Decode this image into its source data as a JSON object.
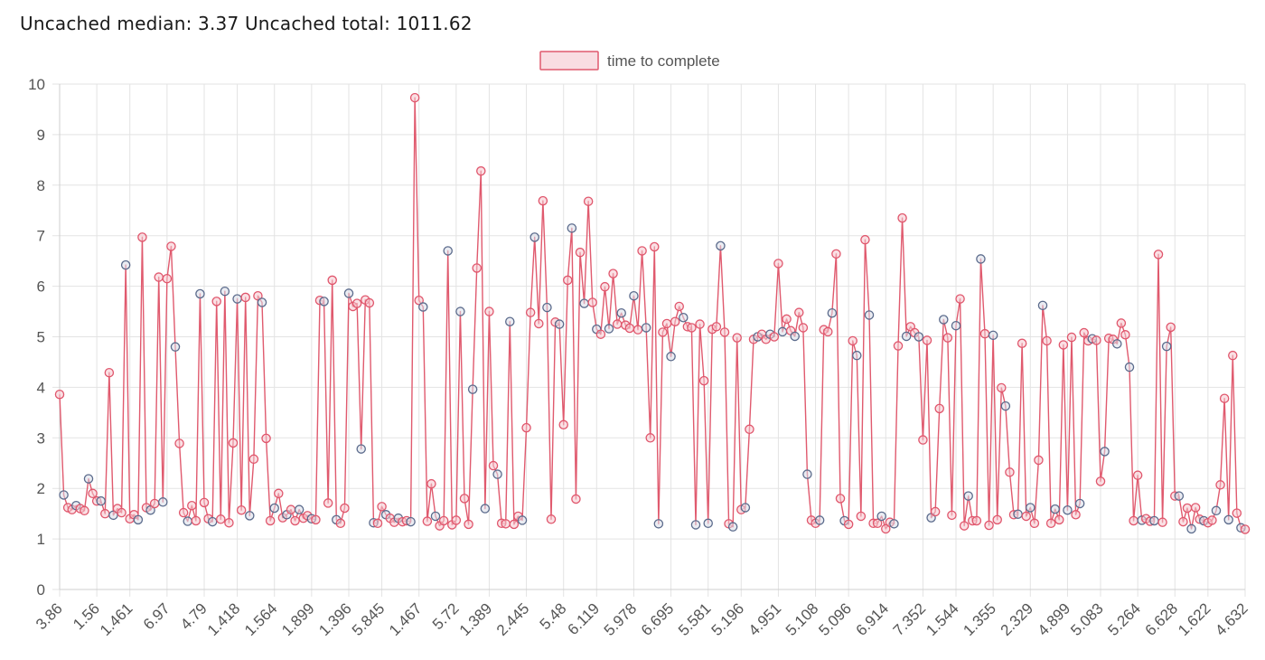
{
  "header": {
    "text": "Uncached median: 3.37 Uncached total: 1011.62"
  },
  "colors": {
    "line": "#e05a6e",
    "point_fill_a": "#f5c6ce",
    "point_stroke_a": "#e0566c",
    "point_fill_b": "#d8dde8",
    "point_stroke_b": "#5b6b8c",
    "grid": "#e3e3e3"
  },
  "chart_data": {
    "type": "line",
    "title": "",
    "xlabel": "",
    "ylabel": "",
    "ylim": [
      0,
      10
    ],
    "yticks": [
      0,
      1,
      2,
      3,
      4,
      5,
      6,
      7,
      8,
      9,
      10
    ],
    "legend": {
      "position": "top-center"
    },
    "grid": true,
    "series": [
      {
        "name": "time to complete",
        "values": [
          3.86,
          1.87,
          1.62,
          1.58,
          1.66,
          1.6,
          1.56,
          2.19,
          1.9,
          1.75,
          1.75,
          1.5,
          4.29,
          1.47,
          1.6,
          1.52,
          6.42,
          1.4,
          1.48,
          1.38,
          6.97,
          1.62,
          1.57,
          1.7,
          6.18,
          1.73,
          6.15,
          6.79,
          4.8,
          2.89,
          1.52,
          1.35,
          1.66,
          1.36,
          5.85,
          1.72,
          1.4,
          1.34,
          5.7,
          1.39,
          5.9,
          1.32,
          2.9,
          5.75,
          1.57,
          5.78,
          1.46,
          2.58,
          5.81,
          5.68,
          2.99,
          1.36,
          1.61,
          1.9,
          1.42,
          1.48,
          1.58,
          1.36,
          1.58,
          1.41,
          1.46,
          1.4,
          1.38,
          5.72,
          5.7,
          1.71,
          6.12,
          1.38,
          1.31,
          1.61,
          5.86,
          5.6,
          5.66,
          2.78,
          5.73,
          5.67,
          1.32,
          1.31,
          1.64,
          1.48,
          1.41,
          1.33,
          1.41,
          1.34,
          1.36,
          1.34,
          9.73,
          5.72,
          5.59,
          1.35,
          2.09,
          1.45,
          1.26,
          1.36,
          6.7,
          1.28,
          1.37,
          5.5,
          1.8,
          1.29,
          3.96,
          6.36,
          8.28,
          1.6,
          5.5,
          2.45,
          2.28,
          1.31,
          1.3,
          5.3,
          1.29,
          1.45,
          1.37,
          3.2,
          5.48,
          6.97,
          5.26,
          7.69,
          5.58,
          1.39,
          5.29,
          5.25,
          3.26,
          6.12,
          7.15,
          1.79,
          6.67,
          5.66,
          7.68,
          5.68,
          5.15,
          5.05,
          5.99,
          5.16,
          6.25,
          5.25,
          5.47,
          5.23,
          5.17,
          5.81,
          5.14,
          6.7,
          5.18,
          3.0,
          6.78,
          1.3,
          5.09,
          5.26,
          4.61,
          5.3,
          5.6,
          5.38,
          5.2,
          5.18,
          1.28,
          5.25,
          4.13,
          1.31,
          5.15,
          5.2,
          6.8,
          5.09,
          1.3,
          1.24,
          4.98,
          1.58,
          1.62,
          3.17,
          4.95,
          5.0,
          5.05,
          4.95,
          5.05,
          5.0,
          6.45,
          5.1,
          5.35,
          5.12,
          5.01,
          5.48,
          5.18,
          2.28,
          1.37,
          1.31,
          1.37,
          5.14,
          5.1,
          5.47,
          6.64,
          1.8,
          1.36,
          1.29,
          4.92,
          4.63,
          1.45,
          6.92,
          5.43,
          1.31,
          1.31,
          1.45,
          1.2,
          1.33,
          1.3,
          4.82,
          7.35,
          5.01,
          5.2,
          5.08,
          5.0,
          2.96,
          4.93,
          1.42,
          1.54,
          3.58,
          5.34,
          4.98,
          1.47,
          5.22,
          5.75,
          1.26,
          1.85,
          1.36,
          1.36,
          6.54,
          5.06,
          1.27,
          5.03,
          1.38,
          3.99,
          3.63,
          2.32,
          1.48,
          1.49,
          4.87,
          1.45,
          1.62,
          1.31,
          2.56,
          5.62,
          4.92,
          1.31,
          1.59,
          1.38,
          4.84,
          1.57,
          4.99,
          1.48,
          1.7,
          5.08,
          4.92,
          4.96,
          4.93,
          2.14,
          2.73,
          4.97,
          4.95,
          4.86,
          5.27,
          5.04,
          4.4,
          1.36,
          2.26,
          1.37,
          1.4,
          1.35,
          1.36,
          6.63,
          1.33,
          4.81,
          5.19,
          1.85,
          1.85,
          1.34,
          1.61,
          1.2,
          1.62,
          1.39,
          1.36,
          1.32,
          1.37,
          1.56,
          2.07,
          3.78,
          1.38,
          4.63,
          1.51,
          1.22,
          1.19
        ]
      }
    ],
    "x_tick_labels": [
      "3.86",
      "1.56",
      "1.461",
      "6.97",
      "4.79",
      "1.418",
      "1.564",
      "1.899",
      "1.396",
      "5.845",
      "1.467",
      "5.72",
      "1.389",
      "2.445",
      "5.48",
      "6.119",
      "5.978",
      "6.695",
      "5.581",
      "5.196",
      "4.951",
      "5.108",
      "5.096",
      "6.914",
      "7.352",
      "1.544",
      "1.355",
      "2.329",
      "4.899",
      "5.083",
      "5.264",
      "6.628",
      "1.622",
      "4.632"
    ]
  }
}
